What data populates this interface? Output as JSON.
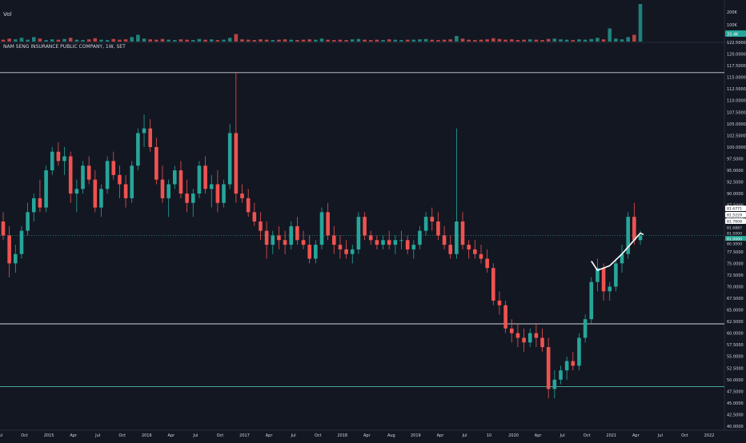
{
  "colors": {
    "background": "#131722",
    "up": "#26a69a",
    "down": "#ef5350",
    "grid": "#2a2e39",
    "axis_text": "#d1d4dc",
    "hline": "#d1d4dc",
    "hline_teal": "#4db6ac",
    "price_tag": "#26a69a",
    "annotation": "#ffffff"
  },
  "header": {
    "volume_label": "Vol",
    "symbol_title": "NAM SENG INSURANCE PUBLIC COMPANY, 1W, SET"
  },
  "volume_axis": {
    "ticks": [
      "200K",
      "100K"
    ],
    "last_volume_tag": "33.4K"
  },
  "price_axis": {
    "ticks": [
      "122.5000",
      "120.0000",
      "117.5000",
      "115.0000",
      "112.5000",
      "110.0000",
      "107.5000",
      "105.0000",
      "102.5000",
      "100.0000",
      "97.5000",
      "95.0000",
      "92.5000",
      "90.0000",
      "87.5000",
      "85.0000",
      "82.5000",
      "80.0000",
      "77.5000",
      "75.0000",
      "72.5000",
      "70.0000",
      "67.5000",
      "65.0000",
      "62.5000",
      "60.0000",
      "57.5000",
      "55.0000",
      "52.5000",
      "50.0000",
      "47.5000",
      "45.0000",
      "42.5000",
      "40.0000"
    ],
    "tags": [
      "81.6771",
      "81.5229",
      "81.7608",
      "81.6887",
      "81.5000",
      "81.0000",
      "80.3000"
    ]
  },
  "time_axis": {
    "labels": [
      "Jul",
      "Oct",
      "2015",
      "Apr",
      "Jul",
      "Oct",
      "2016",
      "Apr",
      "Jul",
      "Oct",
      "2017",
      "Apr",
      "Jul",
      "Oct",
      "2018",
      "Apr",
      "Aug",
      "2019",
      "Apr",
      "Jul",
      "10",
      "2020",
      "Apr",
      "Jul",
      "Oct",
      "2021",
      "Apr",
      "Jul",
      "Oct",
      "2022"
    ]
  },
  "chart_data": {
    "type": "candlestick",
    "title": "NAM SENG INSURANCE PUBLIC COMPANY, 1W, SET",
    "interval": "1W",
    "exchange": "SET",
    "ylim": [
      40,
      122.5
    ],
    "volume_ylim": [
      0,
      200000
    ],
    "horizontal_levels": [
      116.0,
      62.0,
      48.5
    ],
    "last_price": 81.0,
    "candles": [
      [
        84,
        86,
        80,
        81
      ],
      [
        81,
        83,
        72,
        75
      ],
      [
        75,
        79,
        73,
        77
      ],
      [
        77,
        83,
        76,
        82
      ],
      [
        82,
        88,
        81,
        86
      ],
      [
        86,
        90,
        84,
        89
      ],
      [
        89,
        93,
        86,
        87
      ],
      [
        87,
        96,
        86,
        95
      ],
      [
        95,
        100,
        94,
        99
      ],
      [
        99,
        101,
        96,
        97
      ],
      [
        97,
        100,
        94,
        98
      ],
      [
        98,
        99,
        88,
        90
      ],
      [
        90,
        93,
        86,
        91
      ],
      [
        91,
        97,
        90,
        96
      ],
      [
        96,
        98,
        92,
        93
      ],
      [
        93,
        95,
        86,
        87
      ],
      [
        87,
        92,
        85,
        91
      ],
      [
        91,
        98,
        90,
        97
      ],
      [
        97,
        99,
        93,
        94
      ],
      [
        94,
        96,
        89,
        92
      ],
      [
        92,
        94,
        87,
        89
      ],
      [
        89,
        97,
        88,
        96
      ],
      [
        96,
        104,
        95,
        103
      ],
      [
        103,
        107,
        100,
        104
      ],
      [
        104,
        106,
        99,
        100
      ],
      [
        100,
        102,
        92,
        93
      ],
      [
        93,
        96,
        88,
        89
      ],
      [
        89,
        93,
        85,
        92
      ],
      [
        92,
        96,
        91,
        95
      ],
      [
        95,
        97,
        89,
        90
      ],
      [
        90,
        93,
        86,
        88
      ],
      [
        88,
        91,
        85,
        90
      ],
      [
        90,
        97,
        89,
        96
      ],
      [
        96,
        98,
        90,
        91
      ],
      [
        91,
        94,
        87,
        92
      ],
      [
        92,
        95,
        86,
        88
      ],
      [
        88,
        93,
        87,
        92
      ],
      [
        92,
        105,
        91,
        103
      ],
      [
        103,
        116,
        88,
        90
      ],
      [
        90,
        92,
        88,
        89
      ],
      [
        89,
        91,
        85,
        86
      ],
      [
        86,
        88,
        83,
        84
      ],
      [
        84,
        86,
        80,
        82
      ],
      [
        82,
        84,
        76,
        79
      ],
      [
        79,
        82,
        77,
        81
      ],
      [
        81,
        83,
        78,
        80
      ],
      [
        80,
        82,
        77,
        79
      ],
      [
        79,
        84,
        78,
        83
      ],
      [
        83,
        85,
        79,
        80
      ],
      [
        80,
        82,
        78,
        79
      ],
      [
        79,
        81,
        75,
        76
      ],
      [
        76,
        80,
        75,
        79
      ],
      [
        79,
        87,
        78,
        86
      ],
      [
        86,
        88,
        80,
        81
      ],
      [
        81,
        83,
        77,
        79
      ],
      [
        79,
        81,
        76,
        78
      ],
      [
        78,
        80,
        76,
        77
      ],
      [
        77,
        79,
        75,
        78
      ],
      [
        78,
        86,
        77,
        85
      ],
      [
        85,
        86,
        80,
        81
      ],
      [
        81,
        82,
        79,
        80
      ],
      [
        80,
        81,
        78,
        79
      ],
      [
        79,
        81,
        78,
        80
      ],
      [
        80,
        82,
        78,
        79
      ],
      [
        79,
        81,
        77,
        80
      ],
      [
        80,
        82,
        78,
        80
      ],
      [
        80,
        81,
        77,
        78
      ],
      [
        78,
        80,
        76,
        79
      ],
      [
        79,
        83,
        78,
        82
      ],
      [
        82,
        86,
        81,
        85
      ],
      [
        85,
        87,
        82,
        84
      ],
      [
        84,
        86,
        80,
        81
      ],
      [
        81,
        83,
        78,
        79
      ],
      [
        79,
        81,
        76,
        77
      ],
      [
        77,
        104,
        76,
        84
      ],
      [
        84,
        86,
        78,
        79
      ],
      [
        79,
        80,
        76,
        78
      ],
      [
        78,
        80,
        76,
        77
      ],
      [
        77,
        79,
        75,
        76
      ],
      [
        76,
        78,
        73,
        74
      ],
      [
        74,
        75,
        66,
        67
      ],
      [
        67,
        69,
        64,
        66
      ],
      [
        66,
        67,
        60,
        61
      ],
      [
        61,
        63,
        58,
        60
      ],
      [
        60,
        62,
        57,
        59
      ],
      [
        59,
        61,
        56,
        58
      ],
      [
        58,
        61,
        57,
        60
      ],
      [
        60,
        62,
        57,
        59
      ],
      [
        59,
        61,
        56,
        57
      ],
      [
        57,
        59,
        46,
        48
      ],
      [
        48,
        52,
        46,
        50
      ],
      [
        50,
        53,
        49,
        52
      ],
      [
        52,
        55,
        50,
        54
      ],
      [
        54,
        56,
        52,
        53
      ],
      [
        53,
        60,
        52,
        59
      ],
      [
        59,
        64,
        58,
        63
      ],
      [
        63,
        72,
        62,
        71
      ],
      [
        71,
        76,
        69,
        74
      ],
      [
        74,
        75,
        67,
        69
      ],
      [
        69,
        71,
        67,
        70
      ],
      [
        70,
        76,
        69,
        75
      ],
      [
        75,
        79,
        73,
        77
      ],
      [
        77,
        86,
        76,
        85
      ],
      [
        85,
        88,
        79,
        80
      ],
      [
        80,
        82,
        79,
        81
      ]
    ],
    "volume_relative": [
      0.05,
      0.08,
      0.06,
      0.1,
      0.05,
      0.12,
      0.08,
      0.04,
      0.06,
      0.05,
      0.07,
      0.1,
      0.05,
      0.04,
      0.06,
      0.09,
      0.05,
      0.04,
      0.07,
      0.05,
      0.06,
      0.12,
      0.18,
      0.08,
      0.06,
      0.05,
      0.07,
      0.05,
      0.04,
      0.06,
      0.05,
      0.04,
      0.07,
      0.05,
      0.06,
      0.04,
      0.05,
      0.1,
      0.2,
      0.06,
      0.05,
      0.04,
      0.06,
      0.05,
      0.04,
      0.05,
      0.06,
      0.05,
      0.04,
      0.05,
      0.06,
      0.05,
      0.08,
      0.05,
      0.04,
      0.05,
      0.04,
      0.06,
      0.07,
      0.05,
      0.04,
      0.05,
      0.04,
      0.06,
      0.05,
      0.04,
      0.05,
      0.05,
      0.06,
      0.07,
      0.05,
      0.04,
      0.05,
      0.06,
      0.15,
      0.08,
      0.05,
      0.04,
      0.05,
      0.06,
      0.09,
      0.07,
      0.05,
      0.06,
      0.04,
      0.05,
      0.06,
      0.05,
      0.04,
      0.07,
      0.08,
      0.06,
      0.05,
      0.04,
      0.06,
      0.05,
      0.07,
      0.1,
      0.06,
      0.35,
      0.08,
      0.06,
      0.12,
      0.18,
      1.0,
      0.3
    ]
  }
}
